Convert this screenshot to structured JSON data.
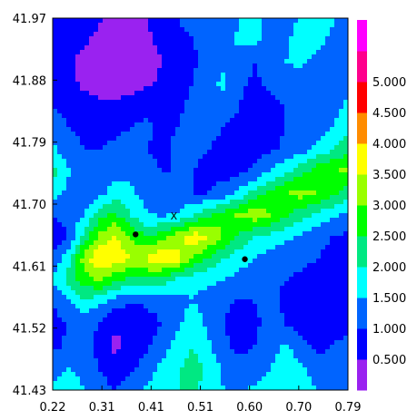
{
  "chart_data": {
    "type": "heatmap",
    "title": "",
    "xlabel": "",
    "ylabel": "",
    "x_ticks": [
      "0.22",
      "0.31",
      "0.41",
      "0.51",
      "0.60",
      "0.70",
      "0.79"
    ],
    "y_ticks": [
      "41.43",
      "41.52",
      "41.61",
      "41.70",
      "41.79",
      "41.88",
      "41.97"
    ],
    "xlim": [
      0.22,
      0.79
    ],
    "ylim": [
      41.43,
      41.97
    ],
    "colorbar": {
      "labels": [
        "0.500",
        "1.000",
        "1.500",
        "2.000",
        "2.500",
        "3.000",
        "3.500",
        "4.000",
        "4.500",
        "5.000"
      ],
      "levels": [
        0,
        0.5,
        1.0,
        1.5,
        2.0,
        2.5,
        3.0,
        3.5,
        4.0,
        4.5,
        5.0,
        5.5
      ],
      "colors": [
        "#9a22f0",
        "#0000ff",
        "#0064ff",
        "#00ffff",
        "#00e882",
        "#00ff00",
        "#99ff00",
        "#ffff00",
        "#ff8c00",
        "#ff0000",
        "#ff008c",
        "#ff00ff"
      ]
    },
    "markers": [
      {
        "type": "dot",
        "x": 0.38,
        "y": 41.656
      },
      {
        "type": "dot",
        "x": 0.591,
        "y": 41.62
      },
      {
        "type": "x",
        "label": "X",
        "x": 0.454,
        "y": 41.683
      }
    ],
    "rows": [
      [
        0.8,
        0.9,
        0.8,
        0.6,
        0.3,
        0.4,
        0.5,
        0.8,
        1.0,
        1.2,
        1.1,
        1.0,
        1.5,
        1.8,
        1.3,
        1.0,
        1.7,
        2.0,
        1.6,
        1.1
      ],
      [
        0.7,
        0.8,
        0.6,
        0.3,
        0.2,
        0.2,
        0.4,
        0.6,
        0.8,
        1.0,
        1.1,
        1.2,
        1.6,
        1.7,
        1.2,
        1.4,
        1.9,
        1.8,
        1.3,
        1.0
      ],
      [
        0.8,
        0.6,
        0.3,
        0.2,
        0.1,
        0.2,
        0.3,
        0.5,
        0.7,
        0.9,
        1.2,
        1.4,
        1.3,
        1.0,
        1.2,
        1.5,
        1.6,
        1.2,
        1.0,
        1.2
      ],
      [
        0.9,
        0.7,
        0.4,
        0.3,
        0.2,
        0.3,
        0.4,
        0.6,
        0.8,
        1.0,
        1.4,
        1.6,
        1.1,
        0.9,
        1.1,
        1.3,
        1.2,
        1.0,
        1.1,
        1.4
      ],
      [
        1.0,
        0.9,
        0.7,
        0.6,
        0.6,
        0.7,
        0.9,
        0.8,
        0.9,
        1.1,
        1.3,
        1.2,
        1.0,
        0.8,
        0.9,
        1.0,
        1.1,
        1.2,
        1.3,
        1.6
      ],
      [
        1.2,
        1.0,
        0.9,
        0.8,
        0.9,
        1.0,
        1.1,
        0.9,
        1.0,
        1.2,
        1.1,
        1.0,
        0.9,
        0.8,
        0.9,
        1.0,
        1.2,
        1.3,
        1.5,
        1.8
      ],
      [
        1.6,
        1.2,
        1.0,
        1.0,
        1.1,
        1.2,
        1.0,
        0.9,
        1.1,
        1.1,
        1.0,
        0.9,
        0.8,
        0.8,
        0.9,
        1.1,
        1.3,
        1.6,
        2.0,
        2.4
      ],
      [
        2.2,
        1.6,
        1.1,
        1.1,
        1.2,
        1.4,
        1.2,
        1.0,
        1.0,
        1.0,
        0.9,
        0.8,
        0.9,
        1.1,
        1.5,
        1.9,
        2.3,
        2.8,
        3.0,
        3.1
      ],
      [
        1.8,
        1.3,
        1.1,
        1.3,
        1.8,
        1.6,
        1.3,
        1.1,
        1.0,
        1.0,
        1.0,
        1.2,
        1.6,
        2.2,
        2.7,
        3.0,
        3.2,
        3.0,
        2.6,
        2.2
      ],
      [
        1.0,
        1.2,
        1.5,
        2.3,
        2.6,
        2.0,
        1.6,
        1.4,
        1.6,
        2.0,
        2.4,
        2.8,
        3.1,
        3.3,
        3.0,
        2.6,
        2.2,
        1.9,
        1.6,
        1.3
      ],
      [
        0.5,
        1.0,
        2.2,
        3.1,
        3.6,
        3.0,
        2.5,
        2.8,
        3.3,
        3.8,
        3.6,
        3.0,
        2.4,
        2.0,
        1.8,
        1.6,
        1.4,
        1.2,
        1.0,
        0.9
      ],
      [
        1.2,
        1.8,
        3.2,
        4.0,
        3.8,
        3.5,
        3.6,
        3.9,
        3.7,
        3.0,
        2.4,
        2.0,
        1.7,
        1.5,
        1.3,
        1.2,
        1.1,
        1.0,
        0.8,
        0.6
      ],
      [
        1.5,
        2.2,
        2.8,
        3.0,
        2.6,
        2.3,
        2.4,
        2.2,
        1.8,
        1.6,
        1.6,
        1.5,
        1.3,
        1.2,
        1.1,
        1.0,
        0.9,
        0.8,
        0.7,
        0.6
      ],
      [
        1.0,
        1.4,
        1.8,
        1.6,
        1.2,
        1.0,
        1.1,
        1.2,
        1.3,
        1.5,
        1.3,
        1.1,
        0.9,
        1.0,
        1.1,
        0.9,
        0.8,
        0.7,
        0.6,
        0.6
      ],
      [
        0.8,
        1.0,
        1.3,
        1.0,
        0.6,
        0.5,
        0.7,
        1.0,
        1.4,
        1.8,
        1.4,
        1.0,
        0.8,
        0.9,
        1.2,
        1.0,
        0.8,
        0.6,
        0.7,
        0.9
      ],
      [
        0.9,
        1.1,
        1.2,
        0.8,
        0.4,
        0.6,
        0.9,
        1.3,
        1.7,
        2.0,
        1.6,
        1.1,
        0.9,
        1.0,
        1.3,
        1.6,
        1.2,
        0.9,
        1.0,
        1.2
      ],
      [
        1.2,
        1.5,
        1.4,
        1.0,
        0.7,
        0.9,
        1.2,
        1.6,
        1.9,
        2.2,
        1.9,
        1.4,
        1.1,
        1.2,
        1.5,
        1.8,
        1.6,
        1.2,
        1.1,
        1.4
      ],
      [
        1.6,
        1.8,
        1.5,
        1.2,
        1.0,
        1.3,
        1.6,
        1.8,
        2.0,
        2.1,
        1.8,
        1.5,
        1.4,
        1.6,
        1.9,
        2.0,
        1.8,
        1.5,
        1.3,
        1.5
      ]
    ]
  }
}
